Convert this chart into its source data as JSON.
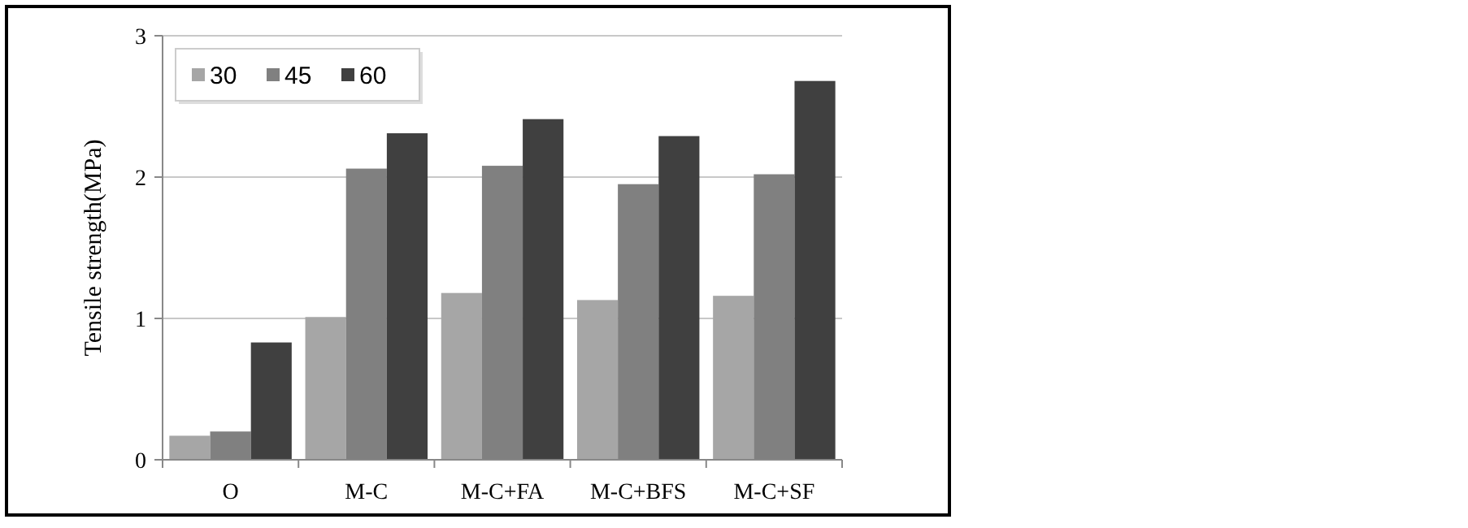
{
  "chart_data": {
    "type": "bar",
    "ylabel": "Tensile strength(MPa)",
    "categories": [
      "O",
      "M-C",
      "M-C+FA",
      "M-C+BFS",
      "M-C+SF"
    ],
    "series": [
      {
        "name": "30",
        "color": "#a6a6a6",
        "values": [
          0.17,
          1.01,
          1.18,
          1.13,
          1.16
        ]
      },
      {
        "name": "45",
        "color": "#808080",
        "values": [
          0.2,
          2.06,
          2.08,
          1.95,
          2.02
        ]
      },
      {
        "name": "60",
        "color": "#404040",
        "values": [
          0.83,
          2.31,
          2.41,
          2.29,
          2.68
        ]
      }
    ],
    "ylim": [
      0,
      3
    ],
    "yticks": [
      0,
      1,
      2,
      3
    ],
    "grid": "y",
    "legend": "top left"
  }
}
